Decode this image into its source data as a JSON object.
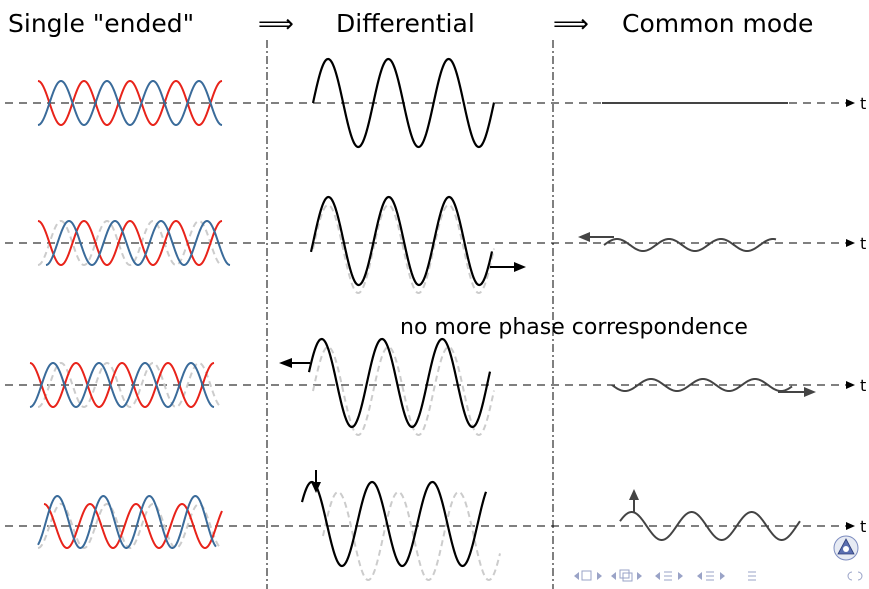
{
  "header": {
    "single_ended": "Single \"ended\"",
    "arrow_1": "⟹",
    "differential": "Differential",
    "arrow_2": "⟹",
    "common_mode": "Common mode"
  },
  "caption": "no more phase correspondence",
  "time_axis_label": "t",
  "rows": [
    {
      "id": "aligned",
      "diff_shift": "none",
      "cm_wave": "flat",
      "arrow": "none"
    },
    {
      "id": "right-shift",
      "diff_shift": "right",
      "cm_wave": "ripple",
      "arrow": "right-and-left"
    },
    {
      "id": "left-shift",
      "diff_shift": "left",
      "cm_wave": "ripple",
      "arrow": "left-and-right"
    },
    {
      "id": "amplitude",
      "diff_shift": "down",
      "cm_wave": "sine",
      "arrow": "down-and-up"
    }
  ],
  "colors": {
    "red_signal": "#e8231a",
    "blue_signal": "#3a6b9a",
    "differential": "#000000",
    "ghost": "#cccccc",
    "common_mode": "#444444",
    "axis": "#000000",
    "nav": "#9aa3c7"
  },
  "nav_icons": [
    "nav-left-arrow-icon",
    "nav-frame-icon",
    "nav-right-arrow-icon",
    "nav-section-icon",
    "nav-subsection-icon",
    "nav-align-icon",
    "nav-search-icon"
  ],
  "logo": "institution-logo-icon"
}
